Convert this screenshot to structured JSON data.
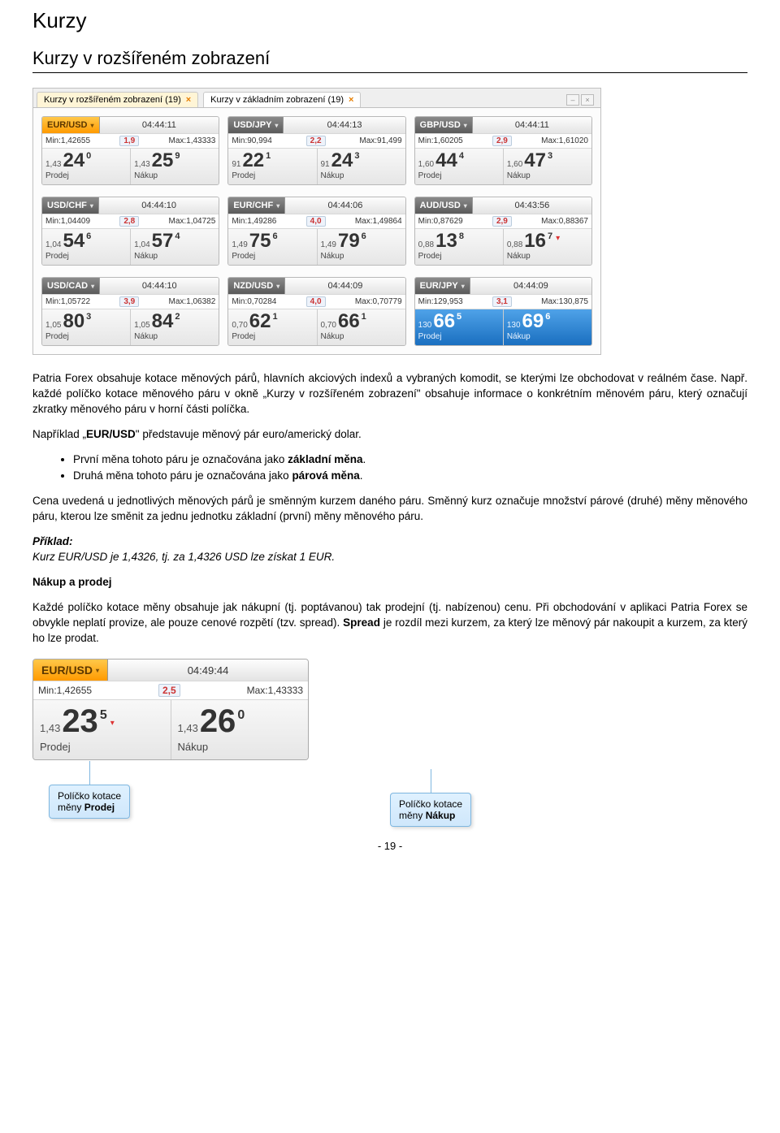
{
  "doc": {
    "h1": "Kurzy",
    "h2": "Kurzy v rozšířeném zobrazení",
    "tab1": "Kurzy v rozšířeném zobrazení (19)",
    "tab2": "Kurzy v základním zobrazení (19)",
    "para1": "Patria Forex obsahuje kotace měnových párů, hlavních akciových indexů a vybraných komodit, se kterými lze obchodovat v reálném čase. Např. každé políčko kotace měnového páru v okně „Kurzy v rozšířeném zobrazení\" obsahuje informace o konkrétním měnovém páru, který označují zkratky měnového páru v horní části políčka.",
    "para2a": "Například „",
    "para2b": "\" představuje měnový pár euro/americký dolar.",
    "eurusd": "EUR/USD",
    "b1a": "První měna tohoto páru je označována jako ",
    "b1b": "základní měna",
    "b2a": "Druhá měna tohoto páru je označována jako ",
    "b2b": "párová měna",
    "para3": "Cena uvedená u jednotlivých měnových párů je směnným kurzem daného páru. Směnný kurz označuje množství párové (druhé) měny měnového páru, kterou lze směnit za jednu jednotku základní (první) měny měnového páru.",
    "priklad_h": "Příklad:",
    "priklad_t": "Kurz EUR/USD je 1,4326, tj. za 1,4326 USD lze získat 1 EUR.",
    "nakup_h": "Nákup a prodej",
    "para4a": "Každé políčko kotace měny obsahuje jak nákupní (tj. poptávanou) tak prodejní (tj. nabízenou) cenu. Při obchodování v aplikaci Patria Forex se obvykle neplatí provize, ale pouze cenové rozpětí (tzv. spread). ",
    "para4b": "Spread",
    "para4c": " je rozdíl mezi kurzem, za který lze měnový pár nakoupit a kurzem, za který ho lze prodat.",
    "callout1a": "Políčko kotace",
    "callout1b": "měny ",
    "callout1c": "Prodej",
    "callout2a": "Políčko kotace",
    "callout2b": "měny ",
    "callout2c": "Nákup",
    "pagenum": "- 19 -"
  },
  "labels": {
    "min": "Min:",
    "max": "Max:",
    "sell": "Prodej",
    "buy": "Nákup"
  },
  "tiles": [
    {
      "pair": "EUR/USD",
      "orange": true,
      "time": "04:44:11",
      "min": "1,42655",
      "spread": "1,9",
      "max": "1,43333",
      "sp": "1,43",
      "sb": "24",
      "ss": "0",
      "bp": "1,43",
      "bb": "25",
      "bs": "9",
      "sa": "",
      "ba": ""
    },
    {
      "pair": "USD/JPY",
      "orange": false,
      "time": "04:44:13",
      "min": "90,994",
      "spread": "2,2",
      "max": "91,499",
      "sp": "91",
      "sb": "22",
      "ss": "1",
      "bp": "91",
      "bb": "24",
      "bs": "3",
      "sa": "",
      "ba": ""
    },
    {
      "pair": "GBP/USD",
      "orange": false,
      "time": "04:44:11",
      "min": "1,60205",
      "spread": "2,9",
      "max": "1,61020",
      "sp": "1,60",
      "sb": "44",
      "ss": "4",
      "bp": "1,60",
      "bb": "47",
      "bs": "3",
      "sa": "",
      "ba": ""
    },
    {
      "pair": "USD/CHF",
      "orange": false,
      "time": "04:44:10",
      "min": "1,04409",
      "spread": "2,8",
      "max": "1,04725",
      "sp": "1,04",
      "sb": "54",
      "ss": "6",
      "bp": "1,04",
      "bb": "57",
      "bs": "4",
      "sa": "",
      "ba": ""
    },
    {
      "pair": "EUR/CHF",
      "orange": false,
      "time": "04:44:06",
      "min": "1,49286",
      "spread": "4,0",
      "max": "1,49864",
      "sp": "1,49",
      "sb": "75",
      "ss": "6",
      "bp": "1,49",
      "bb": "79",
      "bs": "6",
      "sa": "",
      "ba": ""
    },
    {
      "pair": "AUD/USD",
      "orange": false,
      "time": "04:43:56",
      "min": "0,87629",
      "spread": "2,9",
      "max": "0,88367",
      "sp": "0,88",
      "sb": "13",
      "ss": "8",
      "bp": "0,88",
      "bb": "16",
      "bs": "7",
      "sa": "",
      "ba": "▾"
    },
    {
      "pair": "USD/CAD",
      "orange": false,
      "time": "04:44:10",
      "min": "1,05722",
      "spread": "3,9",
      "max": "1,06382",
      "sp": "1,05",
      "sb": "80",
      "ss": "3",
      "bp": "1,05",
      "bb": "84",
      "bs": "2",
      "sa": "",
      "ba": ""
    },
    {
      "pair": "NZD/USD",
      "orange": false,
      "time": "04:44:09",
      "min": "0,70284",
      "spread": "4,0",
      "max": "0,70779",
      "sp": "0,70",
      "sb": "62",
      "ss": "1",
      "bp": "0,70",
      "bb": "66",
      "bs": "1",
      "sa": "",
      "ba": ""
    },
    {
      "pair": "EUR/JPY",
      "orange": false,
      "time": "04:44:09",
      "min": "129,953",
      "spread": "3,1",
      "max": "130,875",
      "sp": "130",
      "sb": "66",
      "ss": "5",
      "bp": "130",
      "bb": "69",
      "bs": "6",
      "sa": "",
      "ba": "",
      "blue": true
    }
  ],
  "big": {
    "pair": "EUR/USD",
    "time": "04:49:44",
    "min": "1,42655",
    "spread": "2,5",
    "max": "1,43333",
    "sp": "1,43",
    "sb": "23",
    "ss": "5",
    "bp": "1,43",
    "bb": "26",
    "bs": "0",
    "sa": "▾"
  }
}
